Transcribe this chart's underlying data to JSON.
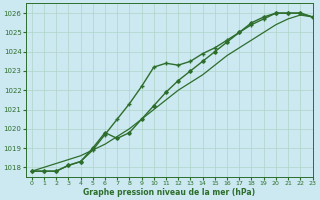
{
  "title": "Graphe pression niveau de la mer (hPa)",
  "bg_color": "#cce8f0",
  "grid_color": "#b0d4c8",
  "line_color": "#2d6e2d",
  "xlim": [
    -0.5,
    23
  ],
  "ylim": [
    1017.5,
    1026.5
  ],
  "yticks": [
    1018,
    1019,
    1020,
    1021,
    1022,
    1023,
    1024,
    1025,
    1026
  ],
  "xticks": [
    0,
    1,
    2,
    3,
    4,
    5,
    6,
    7,
    8,
    9,
    10,
    11,
    12,
    13,
    14,
    15,
    16,
    17,
    18,
    19,
    20,
    21,
    22,
    23
  ],
  "series": [
    {
      "x": [
        0,
        1,
        2,
        3,
        4,
        5,
        6,
        7,
        8,
        9,
        10,
        11,
        12,
        13,
        14,
        15,
        16,
        17,
        18,
        19,
        20,
        21,
        22,
        23
      ],
      "y": [
        1017.8,
        1017.8,
        1017.8,
        1018.1,
        1018.3,
        1018.9,
        1019.7,
        1020.5,
        1021.3,
        1022.2,
        1023.2,
        1023.4,
        1023.3,
        1023.5,
        1023.9,
        1024.2,
        1024.6,
        1025.0,
        1025.4,
        1025.7,
        1026.0,
        1026.0,
        1026.0,
        1025.8
      ],
      "marker": "+",
      "markersize": 3.5,
      "linewidth": 1.0
    },
    {
      "x": [
        0,
        1,
        2,
        3,
        4,
        5,
        6,
        7,
        8,
        9,
        10,
        11,
        12,
        13,
        14,
        15,
        16,
        17,
        18,
        19,
        20,
        21,
        22,
        23
      ],
      "y": [
        1017.8,
        1017.8,
        1017.8,
        1018.1,
        1018.3,
        1019.0,
        1019.8,
        1019.5,
        1019.8,
        1020.5,
        1021.2,
        1021.9,
        1022.5,
        1023.0,
        1023.5,
        1024.0,
        1024.5,
        1025.0,
        1025.5,
        1025.8,
        1026.0,
        1026.0,
        1026.0,
        1025.8
      ],
      "marker": "D",
      "markersize": 1.8,
      "linewidth": 1.0
    },
    {
      "x": [
        0,
        1,
        2,
        3,
        4,
        5,
        6,
        7,
        8,
        9,
        10,
        11,
        12,
        13,
        14,
        15,
        16,
        17,
        18,
        19,
        20,
        21,
        22,
        23
      ],
      "y": [
        1017.8,
        1018.0,
        1018.2,
        1018.4,
        1018.6,
        1018.9,
        1019.2,
        1019.6,
        1020.0,
        1020.5,
        1021.0,
        1021.5,
        1022.0,
        1022.4,
        1022.8,
        1023.3,
        1023.8,
        1024.2,
        1024.6,
        1025.0,
        1025.4,
        1025.7,
        1025.9,
        1025.8
      ],
      "marker": null,
      "markersize": 0,
      "linewidth": 0.9
    }
  ]
}
